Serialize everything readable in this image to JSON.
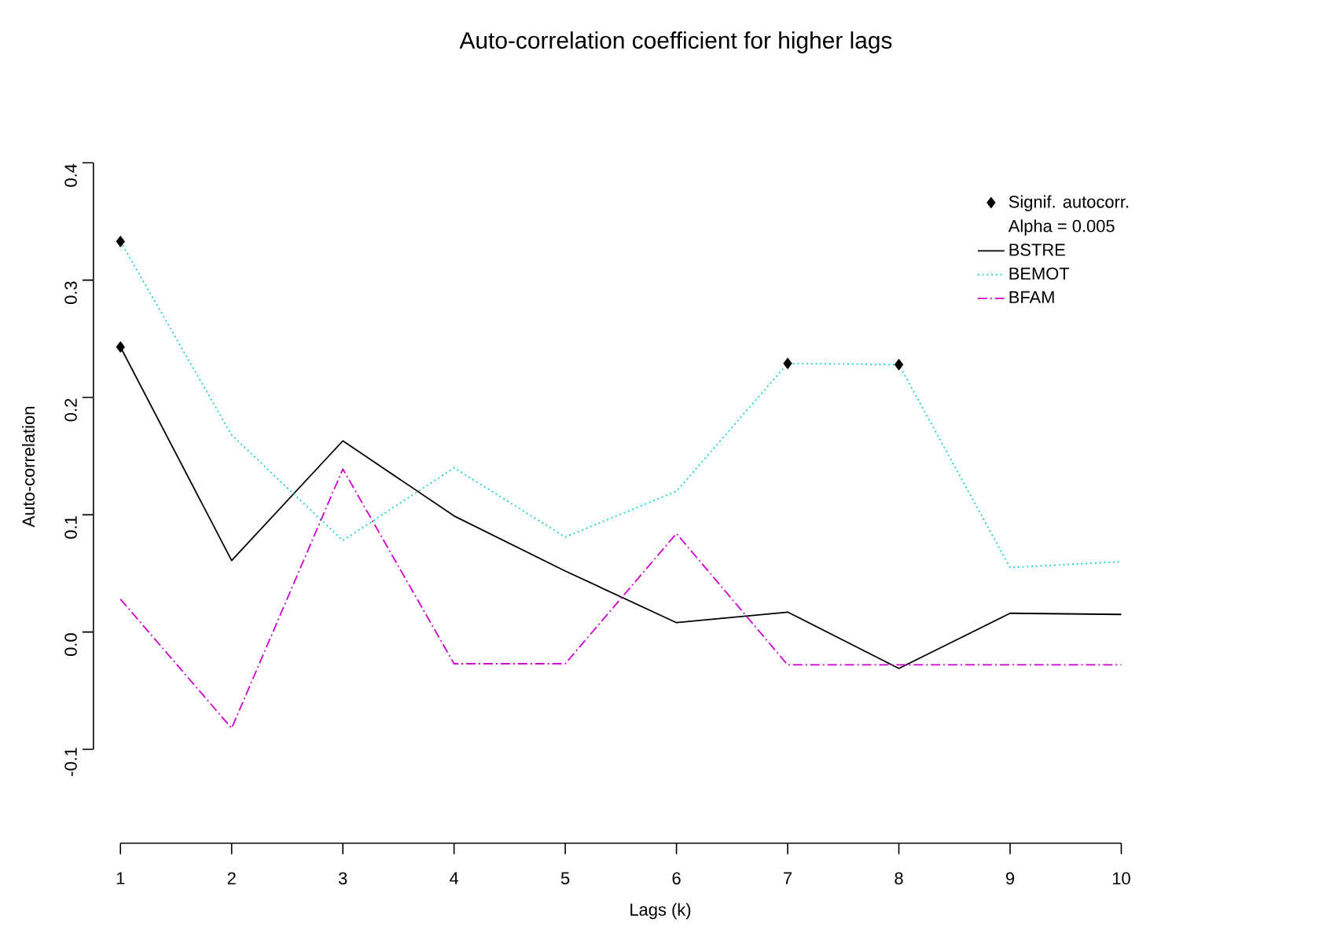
{
  "chart_data": {
    "type": "line",
    "title": "Auto-correlation coefficient for higher lags",
    "xlabel": "Lags (k)",
    "ylabel": "Auto-correlation",
    "x": [
      1,
      2,
      3,
      4,
      5,
      6,
      7,
      8,
      9,
      10
    ],
    "series": [
      {
        "name": "Signif. autocorr.",
        "type": "scatter",
        "color": "#000000",
        "marker": "diamond",
        "x": [
          1,
          1,
          7,
          8
        ],
        "values": [
          0.243,
          0.333,
          0.229,
          0.228
        ]
      },
      {
        "name": "BSTRE",
        "color": "#000000",
        "line_style": "solid",
        "values": [
          0.243,
          0.061,
          0.163,
          0.099,
          0.052,
          0.008,
          0.017,
          -0.031,
          0.016,
          0.015
        ]
      },
      {
        "name": "BEMOT",
        "color": "#00cdcd",
        "line_style": "dotted",
        "values": [
          0.333,
          0.168,
          0.078,
          0.14,
          0.081,
          0.12,
          0.229,
          0.228,
          0.055,
          0.06
        ]
      },
      {
        "name": "BFAM",
        "color": "#cd00cd",
        "line_style": "dashdot",
        "values": [
          0.028,
          -0.082,
          0.139,
          -0.027,
          -0.027,
          0.084,
          -0.028,
          -0.028,
          -0.028,
          -0.028
        ]
      }
    ],
    "xlim": [
      1,
      10
    ],
    "xticks": [
      1,
      2,
      3,
      4,
      5,
      6,
      7,
      8,
      9,
      10
    ],
    "ylim": [
      -0.1,
      0.4
    ],
    "yticks": [
      -0.1,
      {
        "value": 0,
        "label": "0.0"
      },
      0.1,
      0.2,
      0.3,
      0.4
    ],
    "annotations": [
      "Alpha = 0.005"
    ],
    "legend": "top right",
    "grid": false,
    "marker": "none"
  }
}
